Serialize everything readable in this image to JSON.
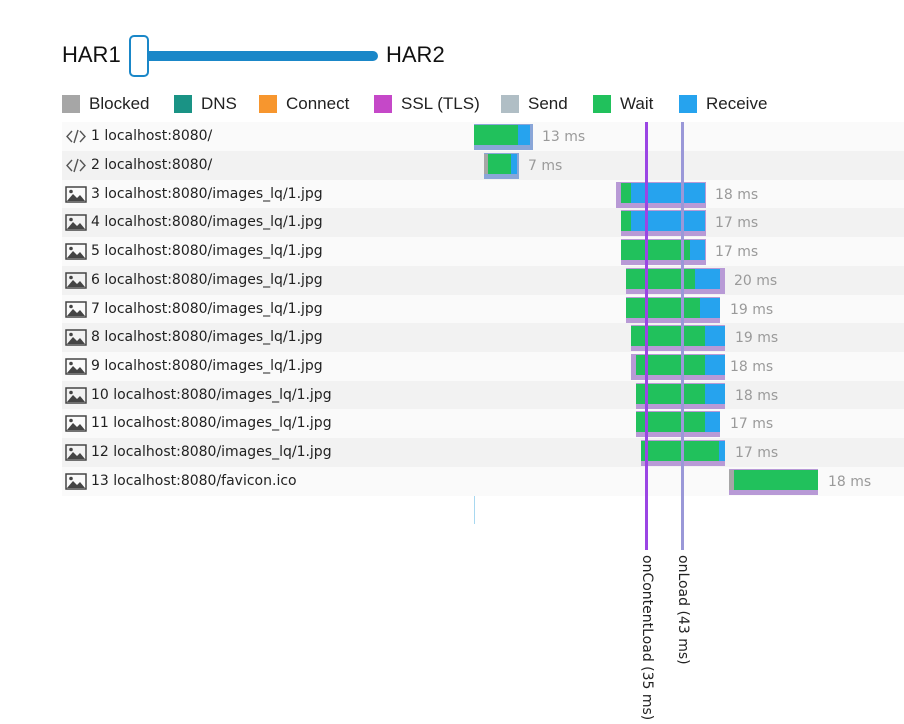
{
  "slider": {
    "left_label": "HAR1",
    "right_label": "HAR2"
  },
  "legend": [
    {
      "label": "Blocked",
      "color": "#a6a6a6"
    },
    {
      "label": "DNS",
      "color": "#1a9385"
    },
    {
      "label": "Connect",
      "color": "#f7962e"
    },
    {
      "label": "SSL (TLS)",
      "color": "#c548c8"
    },
    {
      "label": "Send",
      "color": "#b0bec5"
    },
    {
      "label": "Wait",
      "color": "#21c15c"
    },
    {
      "label": "Receive",
      "color": "#26a3ee"
    }
  ],
  "requests": [
    {
      "label": "1 localhost:8080/",
      "icon": "code-icon",
      "time": "13 ms"
    },
    {
      "label": "2 localhost:8080/",
      "icon": "code-icon",
      "time": "7 ms"
    },
    {
      "label": "3 localhost:8080/images_lq/1.jpg",
      "icon": "image-icon",
      "time": "18 ms"
    },
    {
      "label": "4 localhost:8080/images_lq/1.jpg",
      "icon": "image-icon",
      "time": "17 ms"
    },
    {
      "label": "5 localhost:8080/images_lq/1.jpg",
      "icon": "image-icon",
      "time": "17 ms"
    },
    {
      "label": "6 localhost:8080/images_lq/1.jpg",
      "icon": "image-icon",
      "time": "20 ms"
    },
    {
      "label": "7 localhost:8080/images_lq/1.jpg",
      "icon": "image-icon",
      "time": "19 ms"
    },
    {
      "label": "8 localhost:8080/images_lq/1.jpg",
      "icon": "image-icon",
      "time": "19 ms"
    },
    {
      "label": "9 localhost:8080/images_lq/1.jpg",
      "icon": "image-icon",
      "time": "18 ms"
    },
    {
      "label": "10 localhost:8080/images_lq/1.jpg",
      "icon": "image-icon",
      "time": "18 ms"
    },
    {
      "label": "11 localhost:8080/images_lq/1.jpg",
      "icon": "image-icon",
      "time": "17 ms"
    },
    {
      "label": "12 localhost:8080/images_lq/1.jpg",
      "icon": "image-icon",
      "time": "17 ms"
    },
    {
      "label": "13 localhost:8080/favicon.ico",
      "icon": "image-icon",
      "time": "18 ms"
    }
  ],
  "markers": {
    "content_load": {
      "label": "onContentLoad (35 ms)",
      "color": "#9b45e4"
    },
    "load": {
      "label": "onLoad (43 ms)",
      "color": "#9a98d8"
    }
  }
}
